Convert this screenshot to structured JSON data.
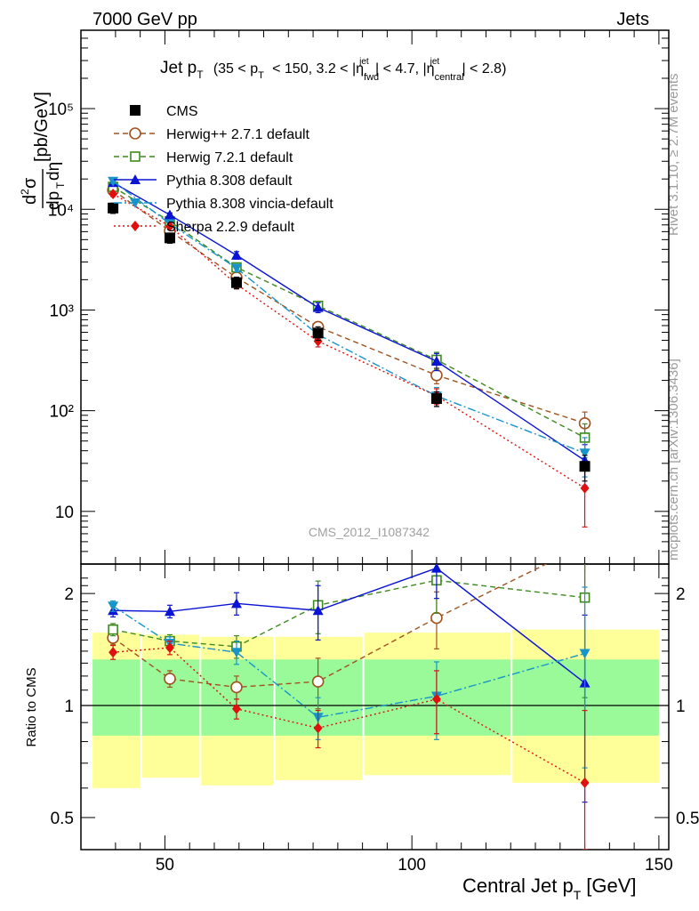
{
  "header": {
    "left": "7000 GeV pp",
    "right": "Jets"
  },
  "side_labels": {
    "rivet": "Rivet 3.1.10, ≥ 2.7M events",
    "mcplots": "mcplots.cern.ch [arXiv:1306.3436]"
  },
  "title": {
    "main": "Jet p",
    "main_sub": "T",
    "cuts": "(35 < p",
    "cuts_sub": "T",
    "cuts_mid": "< 150, 3.2 < |η",
    "eta_sup1": "jet",
    "eta_sub1": "fwd",
    "cuts_mid2": "| < 4.7, |η",
    "eta_sup2": "jet",
    "eta_sub2": "central",
    "cuts_end": "| < 2.8)"
  },
  "watermark": "CMS_2012_I1087342",
  "ylabel_main": "d²σ / dp_T dη [pb/GeV]",
  "ylabel_ratio": "Ratio to CMS",
  "xlabel": "Central Jet p",
  "xlabel_sub": "T",
  "xlabel_unit": "[GeV]",
  "legend": [
    {
      "name": "CMS"
    },
    {
      "name": "Herwig++ 2.7.1 default"
    },
    {
      "name": "Herwig 7.2.1 default"
    },
    {
      "name": "Pythia 8.308 default"
    },
    {
      "name": "Pythia 8.308 vincia-default"
    },
    {
      "name": "Sherpa 2.2.9 default"
    }
  ],
  "chart_data": {
    "type": "line",
    "x_bins": [
      [
        35,
        45
      ],
      [
        45,
        57
      ],
      [
        57,
        72
      ],
      [
        72,
        90
      ],
      [
        90,
        120
      ],
      [
        120,
        150
      ]
    ],
    "x": [
      39.5,
      51,
      64.5,
      81,
      105,
      135
    ],
    "xlim": [
      33,
      152
    ],
    "x_ticks": [
      "50",
      "100",
      "150"
    ],
    "main": {
      "scale": "log",
      "ylim": [
        3,
        600000
      ],
      "y_ticks": [
        "10",
        "10²",
        "10³",
        "10⁴",
        "10⁵"
      ],
      "series": [
        {
          "name": "CMS",
          "color": "#000000",
          "marker": "square-filled",
          "values": [
            10300,
            5200,
            1870,
            590,
            132,
            28
          ],
          "err": [
            1200,
            600,
            250,
            90,
            22,
            8
          ]
        },
        {
          "name": "Herwig++ 2.7.1 default",
          "color": "#a0521e",
          "marker": "circle-open",
          "values": [
            15500,
            6100,
            2100,
            680,
            225,
            75
          ],
          "err": [
            900,
            300,
            150,
            80,
            40,
            22
          ]
        },
        {
          "name": "Herwig 7.2.1 default",
          "color": "#3c8a1e",
          "marker": "square-open",
          "values": [
            16700,
            7600,
            2650,
            1100,
            320,
            54
          ],
          "err": [
            900,
            350,
            200,
            110,
            60,
            20
          ]
        },
        {
          "name": "Pythia 8.308 default",
          "color": "#0a14d2",
          "marker": "triangle-up",
          "values": [
            18400,
            8800,
            3500,
            1060,
            310,
            32
          ],
          "err": [
            900,
            400,
            300,
            120,
            60,
            14
          ]
        },
        {
          "name": "Pythia 8.308 vincia-default",
          "color": "#1894c8",
          "marker": "triangle-down",
          "values": [
            19000,
            7200,
            2600,
            570,
            140,
            38
          ],
          "err": [
            900,
            350,
            200,
            80,
            30,
            16
          ]
        },
        {
          "name": "Sherpa 2.2.9 default",
          "color": "#e01010",
          "marker": "diamond",
          "values": [
            14200,
            6800,
            1800,
            490,
            140,
            17
          ],
          "err": [
            800,
            350,
            150,
            60,
            25,
            10
          ]
        }
      ]
    },
    "ratio": {
      "scale": "log",
      "ylim": [
        0.41,
        2.4
      ],
      "y_ticks": [
        "0.5",
        "1",
        "2"
      ],
      "band_inner": [
        [
          0.83,
          1.33
        ],
        [
          0.83,
          1.33
        ],
        [
          0.83,
          1.33
        ],
        [
          0.83,
          1.33
        ],
        [
          0.83,
          1.33
        ],
        [
          0.83,
          1.33
        ]
      ],
      "band_outer": [
        [
          0.6,
          1.57
        ],
        [
          0.64,
          1.55
        ],
        [
          0.61,
          1.53
        ],
        [
          0.63,
          1.53
        ],
        [
          0.65,
          1.57
        ],
        [
          0.62,
          1.6
        ]
      ],
      "series": [
        {
          "name": "Herwig++ 2.7.1 default",
          "values": [
            1.52,
            1.18,
            1.12,
            1.16,
            1.72,
            2.7
          ],
          "err": [
            0.06,
            0.06,
            0.08,
            0.18,
            0.3,
            0.8
          ]
        },
        {
          "name": "Herwig 7.2.1 default",
          "values": [
            1.6,
            1.49,
            1.44,
            1.86,
            2.17,
            1.95
          ],
          "err": [
            0.06,
            0.06,
            0.1,
            0.3,
            0.4,
            0.9
          ]
        },
        {
          "name": "Pythia 8.308 default",
          "values": [
            1.8,
            1.79,
            1.88,
            1.8,
            2.34,
            1.15
          ],
          "err": [
            0.07,
            0.07,
            0.13,
            0.3,
            0.4,
            0.6
          ]
        },
        {
          "name": "Pythia 8.308 vincia-default",
          "values": [
            1.85,
            1.47,
            1.39,
            0.93,
            1.06,
            1.38
          ],
          "err": [
            0.06,
            0.06,
            0.1,
            0.12,
            0.25,
            0.7
          ]
        },
        {
          "name": "Sherpa 2.2.9 default",
          "values": [
            1.39,
            1.43,
            0.98,
            0.87,
            1.04,
            0.62
          ],
          "err": [
            0.06,
            0.06,
            0.06,
            0.1,
            0.2,
            0.35
          ]
        }
      ]
    }
  }
}
